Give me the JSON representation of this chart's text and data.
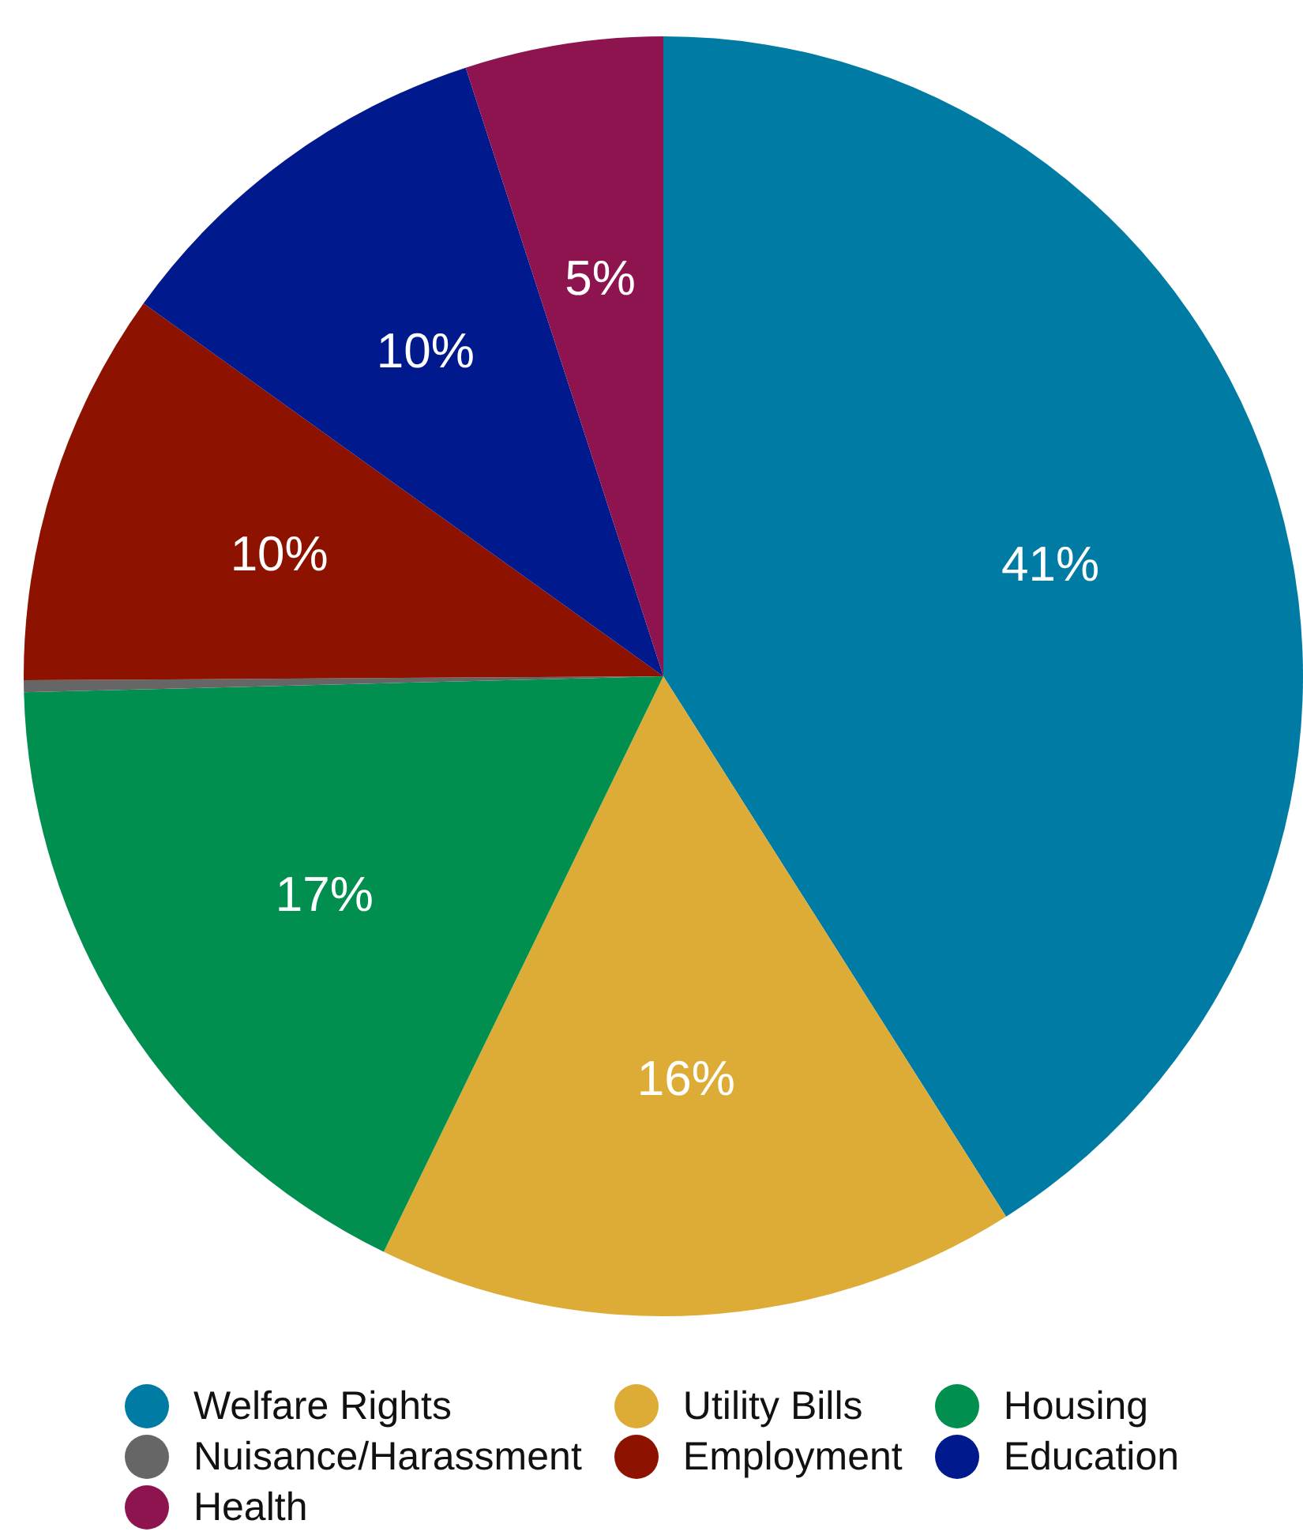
{
  "chart_data": {
    "type": "pie",
    "categories": [
      "Welfare Rights",
      "Utility Bills",
      "Housing",
      "Nuisance/Harassment",
      "Employment",
      "Education",
      "Health"
    ],
    "values": [
      41.0,
      16.2,
      17.4,
      0.3,
      10.0,
      10.1,
      5.0
    ],
    "value_labels": [
      "41%",
      "16%",
      "17%",
      null,
      "10%",
      "10%",
      "5%"
    ],
    "colors": [
      "#007ba3",
      "#ddac37",
      "#008f4f",
      "#666666",
      "#8e1200",
      "#001a8e",
      "#8e1450"
    ],
    "legend": "bottom"
  }
}
